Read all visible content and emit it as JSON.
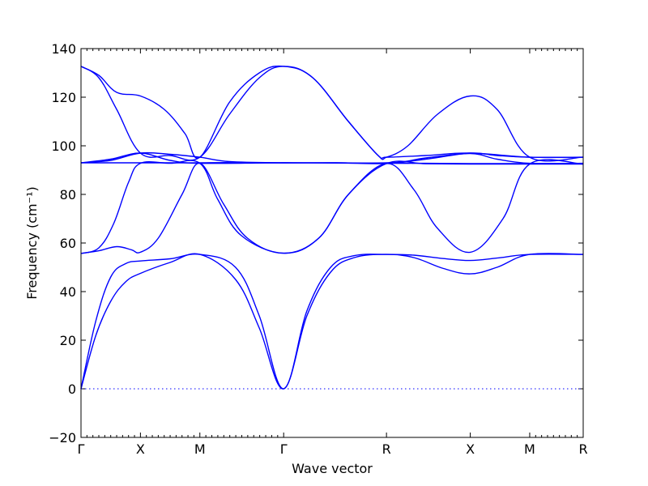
{
  "chart_data": {
    "type": "line",
    "title": "",
    "xlabel": "Wave vector",
    "ylabel": "Frequency (cm⁻¹)",
    "ylim": [
      -20,
      140
    ],
    "yticks": [
      -20,
      0,
      20,
      40,
      60,
      80,
      100,
      120,
      140
    ],
    "xlim": [
      0,
      8.45
    ],
    "grid": false,
    "legend": "none",
    "line_color": "#0000ff",
    "high_symmetry_points": [
      {
        "label": "Γ",
        "x": 0
      },
      {
        "label": "X",
        "x": 1
      },
      {
        "label": "M",
        "x": 2
      },
      {
        "label": "Γ",
        "x": 3.41
      },
      {
        "label": "R",
        "x": 5.14
      },
      {
        "label": "X",
        "x": 6.55
      },
      {
        "label": "M",
        "x": 7.55
      },
      {
        "label": "R",
        "x": 8.45
      }
    ],
    "zero_reference": 0,
    "series": [
      {
        "values": [
          {
            "x": 0,
            "y": 0
          },
          {
            "x": 0.25,
            "y": 22
          },
          {
            "x": 0.5,
            "y": 36
          },
          {
            "x": 0.75,
            "y": 44
          },
          {
            "x": 1,
            "y": 47.5
          },
          {
            "x": 1.5,
            "y": 52
          },
          {
            "x": 2,
            "y": 55.3
          },
          {
            "x": 2.6,
            "y": 45
          },
          {
            "x": 3.0,
            "y": 25
          },
          {
            "x": 3.41,
            "y": 0
          },
          {
            "x": 3.8,
            "y": 30
          },
          {
            "x": 4.2,
            "y": 48
          },
          {
            "x": 4.6,
            "y": 54
          },
          {
            "x": 5.14,
            "y": 55.3
          },
          {
            "x": 5.6,
            "y": 54
          },
          {
            "x": 6.1,
            "y": 49.5
          },
          {
            "x": 6.55,
            "y": 47.3
          },
          {
            "x": 7.0,
            "y": 50
          },
          {
            "x": 7.55,
            "y": 55.3
          },
          {
            "x": 8.45,
            "y": 55.3
          }
        ]
      },
      {
        "values": [
          {
            "x": 0,
            "y": 0
          },
          {
            "x": 0.25,
            "y": 28
          },
          {
            "x": 0.5,
            "y": 46
          },
          {
            "x": 0.75,
            "y": 51.5
          },
          {
            "x": 1,
            "y": 52.6
          },
          {
            "x": 1.5,
            "y": 53.5
          },
          {
            "x": 2,
            "y": 55.3
          },
          {
            "x": 2.6,
            "y": 50
          },
          {
            "x": 3.0,
            "y": 30
          },
          {
            "x": 3.41,
            "y": 0
          },
          {
            "x": 3.8,
            "y": 32
          },
          {
            "x": 4.2,
            "y": 50
          },
          {
            "x": 4.6,
            "y": 54.8
          },
          {
            "x": 5.14,
            "y": 55.3
          },
          {
            "x": 5.6,
            "y": 55
          },
          {
            "x": 6.1,
            "y": 53.6
          },
          {
            "x": 6.55,
            "y": 52.8
          },
          {
            "x": 7.0,
            "y": 53.8
          },
          {
            "x": 7.55,
            "y": 55.3
          },
          {
            "x": 8.45,
            "y": 55.3
          }
        ]
      },
      {
        "values": [
          {
            "x": 0,
            "y": 55.7
          },
          {
            "x": 0.3,
            "y": 56.8
          },
          {
            "x": 0.6,
            "y": 58.5
          },
          {
            "x": 0.85,
            "y": 57.2
          },
          {
            "x": 1,
            "y": 56.2
          },
          {
            "x": 1.3,
            "y": 62
          },
          {
            "x": 1.7,
            "y": 80
          },
          {
            "x": 2,
            "y": 92.8
          },
          {
            "x": 2.4,
            "y": 76
          },
          {
            "x": 2.8,
            "y": 62
          },
          {
            "x": 3.41,
            "y": 55.8
          },
          {
            "x": 4.0,
            "y": 62
          },
          {
            "x": 4.5,
            "y": 80
          },
          {
            "x": 5.14,
            "y": 92.7
          },
          {
            "x": 5.6,
            "y": 82
          },
          {
            "x": 6.0,
            "y": 66
          },
          {
            "x": 6.55,
            "y": 56.2
          },
          {
            "x": 7.1,
            "y": 70
          },
          {
            "x": 7.55,
            "y": 92.5
          },
          {
            "x": 8.45,
            "y": 92.5
          }
        ]
      },
      {
        "values": [
          {
            "x": 0,
            "y": 55.7
          },
          {
            "x": 0.3,
            "y": 58
          },
          {
            "x": 0.55,
            "y": 68
          },
          {
            "x": 0.8,
            "y": 85
          },
          {
            "x": 1,
            "y": 92.8
          },
          {
            "x": 1.5,
            "y": 92.8
          },
          {
            "x": 2,
            "y": 92.8
          },
          {
            "x": 2.3,
            "y": 78
          },
          {
            "x": 2.7,
            "y": 63
          },
          {
            "x": 3.41,
            "y": 55.8
          },
          {
            "x": 4.0,
            "y": 62
          },
          {
            "x": 4.5,
            "y": 80
          },
          {
            "x": 5.14,
            "y": 92.7
          },
          {
            "x": 5.8,
            "y": 92.6
          },
          {
            "x": 6.55,
            "y": 92.5
          },
          {
            "x": 7.55,
            "y": 92.5
          },
          {
            "x": 8.45,
            "y": 92.5
          }
        ]
      },
      {
        "values": [
          {
            "x": 0,
            "y": 93
          },
          {
            "x": 0.5,
            "y": 93
          },
          {
            "x": 1,
            "y": 93
          },
          {
            "x": 1.5,
            "y": 93
          },
          {
            "x": 2,
            "y": 93
          },
          {
            "x": 2.5,
            "y": 93.1
          },
          {
            "x": 3.41,
            "y": 93
          },
          {
            "x": 4.3,
            "y": 93
          },
          {
            "x": 5.14,
            "y": 92.8
          },
          {
            "x": 5.8,
            "y": 92.8
          },
          {
            "x": 6.55,
            "y": 92.7
          },
          {
            "x": 7.55,
            "y": 92.7
          },
          {
            "x": 8.45,
            "y": 92.7
          }
        ]
      },
      {
        "values": [
          {
            "x": 0,
            "y": 93
          },
          {
            "x": 0.5,
            "y": 94
          },
          {
            "x": 1,
            "y": 97
          },
          {
            "x": 1.5,
            "y": 96.5
          },
          {
            "x": 2,
            "y": 95.3
          },
          {
            "x": 2.5,
            "y": 93.5
          },
          {
            "x": 3.41,
            "y": 93
          },
          {
            "x": 4.3,
            "y": 93
          },
          {
            "x": 5.14,
            "y": 92.7
          },
          {
            "x": 5.8,
            "y": 94.5
          },
          {
            "x": 6.55,
            "y": 97
          },
          {
            "x": 7.0,
            "y": 96
          },
          {
            "x": 7.55,
            "y": 95.3
          },
          {
            "x": 8.45,
            "y": 95.3
          }
        ]
      },
      {
        "values": [
          {
            "x": 0,
            "y": 93
          },
          {
            "x": 0.5,
            "y": 94.5
          },
          {
            "x": 1,
            "y": 97
          },
          {
            "x": 1.5,
            "y": 94
          },
          {
            "x": 2,
            "y": 92.8
          },
          {
            "x": 3.41,
            "y": 93
          },
          {
            "x": 5.14,
            "y": 93
          },
          {
            "x": 5.8,
            "y": 95
          },
          {
            "x": 6.55,
            "y": 96.8
          },
          {
            "x": 7.0,
            "y": 94.5
          },
          {
            "x": 7.55,
            "y": 92.8
          },
          {
            "x": 8.45,
            "y": 92.8
          }
        ]
      },
      {
        "values": [
          {
            "x": 0,
            "y": 132.7
          },
          {
            "x": 0.3,
            "y": 129
          },
          {
            "x": 0.6,
            "y": 122
          },
          {
            "x": 1,
            "y": 120.5
          },
          {
            "x": 1.4,
            "y": 115
          },
          {
            "x": 1.75,
            "y": 105
          },
          {
            "x": 2,
            "y": 95.3
          },
          {
            "x": 2.5,
            "y": 118
          },
          {
            "x": 3.0,
            "y": 130
          },
          {
            "x": 3.41,
            "y": 132.7
          },
          {
            "x": 3.9,
            "y": 128
          },
          {
            "x": 4.5,
            "y": 110
          },
          {
            "x": 5.0,
            "y": 96
          },
          {
            "x": 5.14,
            "y": 95.3
          },
          {
            "x": 5.5,
            "y": 100
          },
          {
            "x": 6.0,
            "y": 113
          },
          {
            "x": 6.55,
            "y": 120.5
          },
          {
            "x": 7.0,
            "y": 115
          },
          {
            "x": 7.55,
            "y": 95.3
          },
          {
            "x": 8.45,
            "y": 95.3
          }
        ]
      },
      {
        "values": [
          {
            "x": 0,
            "y": 132.7
          },
          {
            "x": 0.3,
            "y": 128
          },
          {
            "x": 0.6,
            "y": 115
          },
          {
            "x": 1,
            "y": 97
          },
          {
            "x": 1.5,
            "y": 96
          },
          {
            "x": 2,
            "y": 95.3
          },
          {
            "x": 2.5,
            "y": 113
          },
          {
            "x": 3.0,
            "y": 128
          },
          {
            "x": 3.41,
            "y": 132.7
          },
          {
            "x": 3.9,
            "y": 128
          },
          {
            "x": 4.5,
            "y": 110
          },
          {
            "x": 5.0,
            "y": 96
          },
          {
            "x": 5.14,
            "y": 95.3
          },
          {
            "x": 5.8,
            "y": 96
          },
          {
            "x": 6.55,
            "y": 97
          },
          {
            "x": 7.55,
            "y": 95.3
          },
          {
            "x": 8.45,
            "y": 95.3
          }
        ]
      }
    ]
  }
}
